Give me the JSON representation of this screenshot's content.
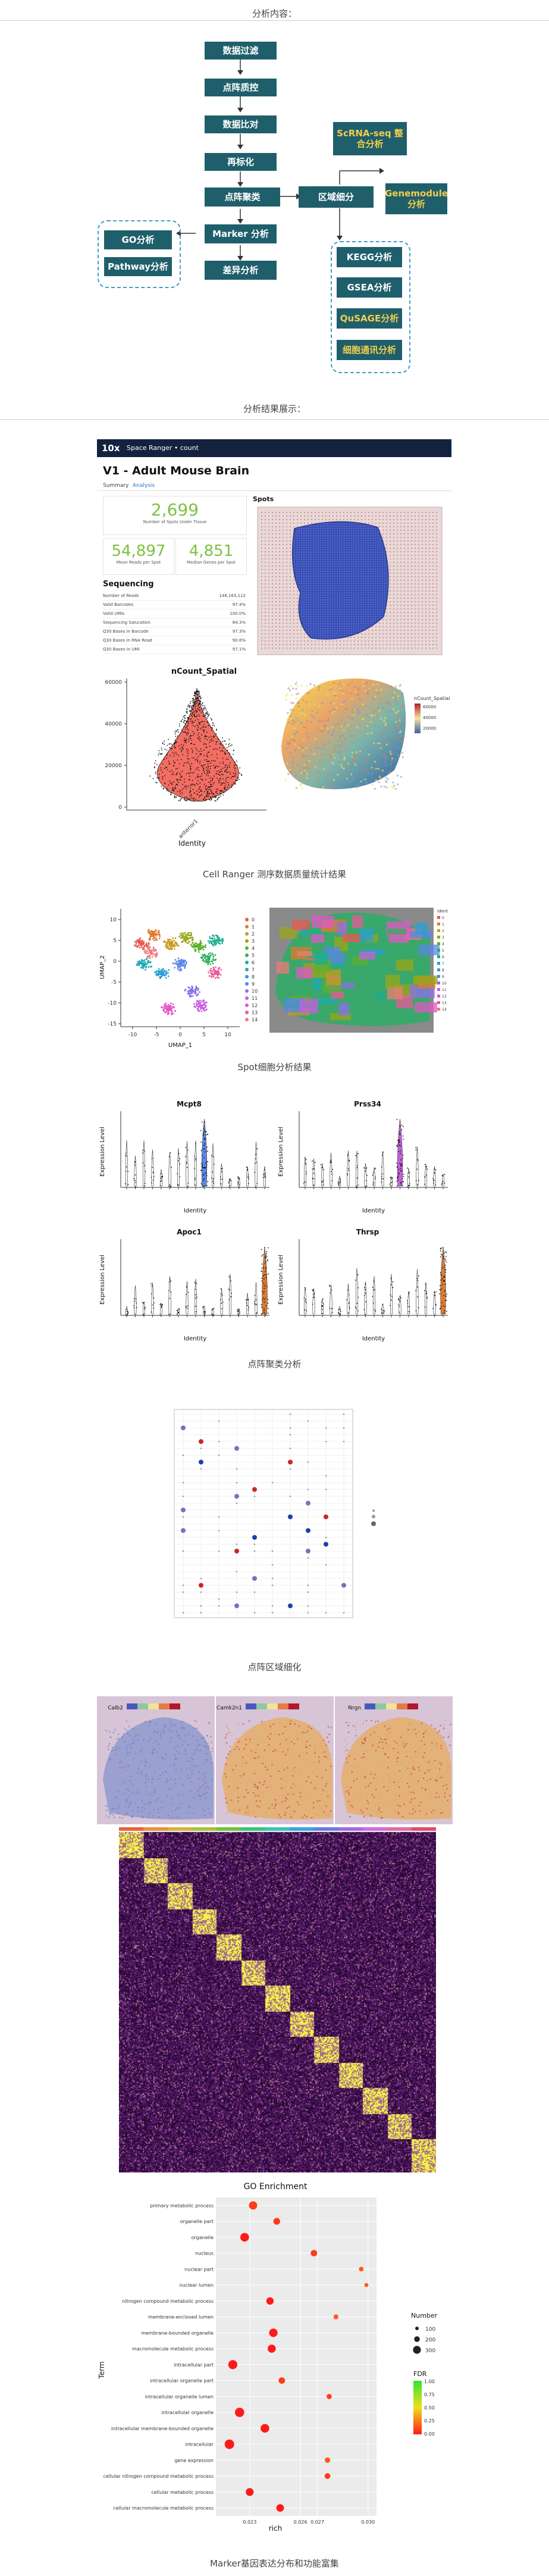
{
  "header": {
    "title": "分析内容："
  },
  "flow": {
    "nodes": {
      "qc": "数据过滤",
      "filter": "点阵质控",
      "compare": "数据比对",
      "norm": "再标化",
      "cluster": "点阵聚类",
      "region": "区域细分",
      "scrna": "ScRNA-seq 整合分析",
      "genemodule": "Genemodule 分析",
      "marker": "Marker 分析",
      "diff": "差异分析",
      "go": "GO分析",
      "pathway": "Pathway分析",
      "kegg": "KEGG分析",
      "gsea": "GSEA分析",
      "qusage": "QuSAGE分析",
      "cellcomm": "细胞通讯分析"
    }
  },
  "results": {
    "title": "分析结果展示："
  },
  "panel1": {
    "logo": "10x",
    "app": "Space Ranger • count",
    "sample": "V1 - Adult Mouse Brain",
    "tabs": [
      "Summary",
      "Analysis"
    ],
    "spots_value": "2,699",
    "spots_label": "Number of Spots Under Tissue",
    "reads_value": "54,897",
    "reads_label": "Mean Reads per Spot",
    "genes_value": "4,851",
    "genes_label": "Median Genes per Spot",
    "spots_title": "Spots",
    "seq_title": "Sequencing",
    "seq_rows": [
      {
        "k": "Number of Reads",
        "v": "148,163,112"
      },
      {
        "k": "Valid Barcodes",
        "v": "97.4%"
      },
      {
        "k": "Valid UMIs",
        "v": "100.0%"
      },
      {
        "k": "Sequencing Saturation",
        "v": "84.3%"
      },
      {
        "k": "Q30 Bases in Barcode",
        "v": "97.3%"
      },
      {
        "k": "Q30 Bases in RNA Read",
        "v": "90.6%"
      },
      {
        "k": "Q30 Bases in UMI",
        "v": "97.1%"
      }
    ],
    "violin_title": "nCount_Spatial",
    "violin_xlabel": "Identity",
    "violin_xtick": "anterior1",
    "violin_yticks": [
      "0",
      "20000",
      "40000",
      "60000"
    ],
    "heat_legend_title": "nCount_Spatial",
    "heat_legend_ticks": [
      "60000",
      "40000",
      "20000"
    ]
  },
  "caption1": "Cell Ranger 测序数据质量统计结果",
  "panel2": {
    "xlabel": "UMAP_1",
    "ylabel": "UMAP_2",
    "xticks": [
      "-10",
      "-5",
      "0",
      "5",
      "10"
    ],
    "yticks": [
      "10",
      "5",
      "0",
      "-5",
      "-10",
      "-15"
    ],
    "legend": [
      "0",
      "1",
      "2",
      "3",
      "4",
      "5",
      "6",
      "7",
      "8",
      "9",
      "10",
      "11",
      "12",
      "13",
      "14"
    ],
    "ident_title": "ident"
  },
  "caption2": "Spot细胞分析结果",
  "panel3": {
    "genes": [
      "Mcpt8",
      "Prss34",
      "Apoc1",
      "Thrsp"
    ],
    "ylabel": "Expression Level",
    "xlabel": "Identity"
  },
  "caption3": "点阵聚类分析",
  "caption4": "点阵区域细化",
  "panel5": {
    "genes": [
      "Calb2",
      "Camk2n1",
      "Nrgn"
    ]
  },
  "panel6": {
    "title": "GO Enrichment",
    "xlabel": "rich",
    "ylabel": "Term",
    "xticks": [
      "0.023",
      "0.026",
      "0.027",
      "0.030"
    ],
    "size_legend_title": "Number",
    "size_legend": [
      "100",
      "200",
      "300"
    ],
    "fdr_legend_title": "FDR",
    "fdr_ticks": [
      "1.00",
      "0.75",
      "0.50",
      "0.25",
      "0.00"
    ],
    "terms": [
      "primary metabolic process",
      "organelle part",
      "organelle",
      "nucleus",
      "nuclear part",
      "nuclear lumen",
      "nitrogen compound metabolic process",
      "membrane-enclosed lumen",
      "membrane-bounded organelle",
      "macromolecule metabolic process",
      "intracellular part",
      "intracellular organelle part",
      "intracellular organelle lumen",
      "intracellular organelle",
      "intracellular membrane-bounded organelle",
      "intracellular",
      "gene expression",
      "cellular nitrogen compound metabolic process",
      "cellular metabolic process",
      "cellular macromolecule metabolic process"
    ],
    "rich": [
      0.0232,
      0.0246,
      0.0227,
      0.0268,
      0.0296,
      0.0299,
      0.0242,
      0.0281,
      0.0244,
      0.0243,
      0.022,
      0.0249,
      0.0277,
      0.0224,
      0.0239,
      0.0218,
      0.0276,
      0.0276,
      0.023,
      0.0248
    ],
    "number": [
      280,
      210,
      300,
      190,
      110,
      80,
      240,
      120,
      290,
      270,
      320,
      190,
      130,
      330,
      300,
      340,
      150,
      160,
      260,
      250
    ],
    "fdr": [
      0.02,
      0.03,
      0.01,
      0.02,
      0.05,
      0.04,
      0.01,
      0.05,
      0.01,
      0.01,
      0.01,
      0.02,
      0.03,
      0.01,
      0.01,
      0.01,
      0.04,
      0.03,
      0.01,
      0.01
    ]
  },
  "caption6": "Marker基因表达分布和功能富集"
}
